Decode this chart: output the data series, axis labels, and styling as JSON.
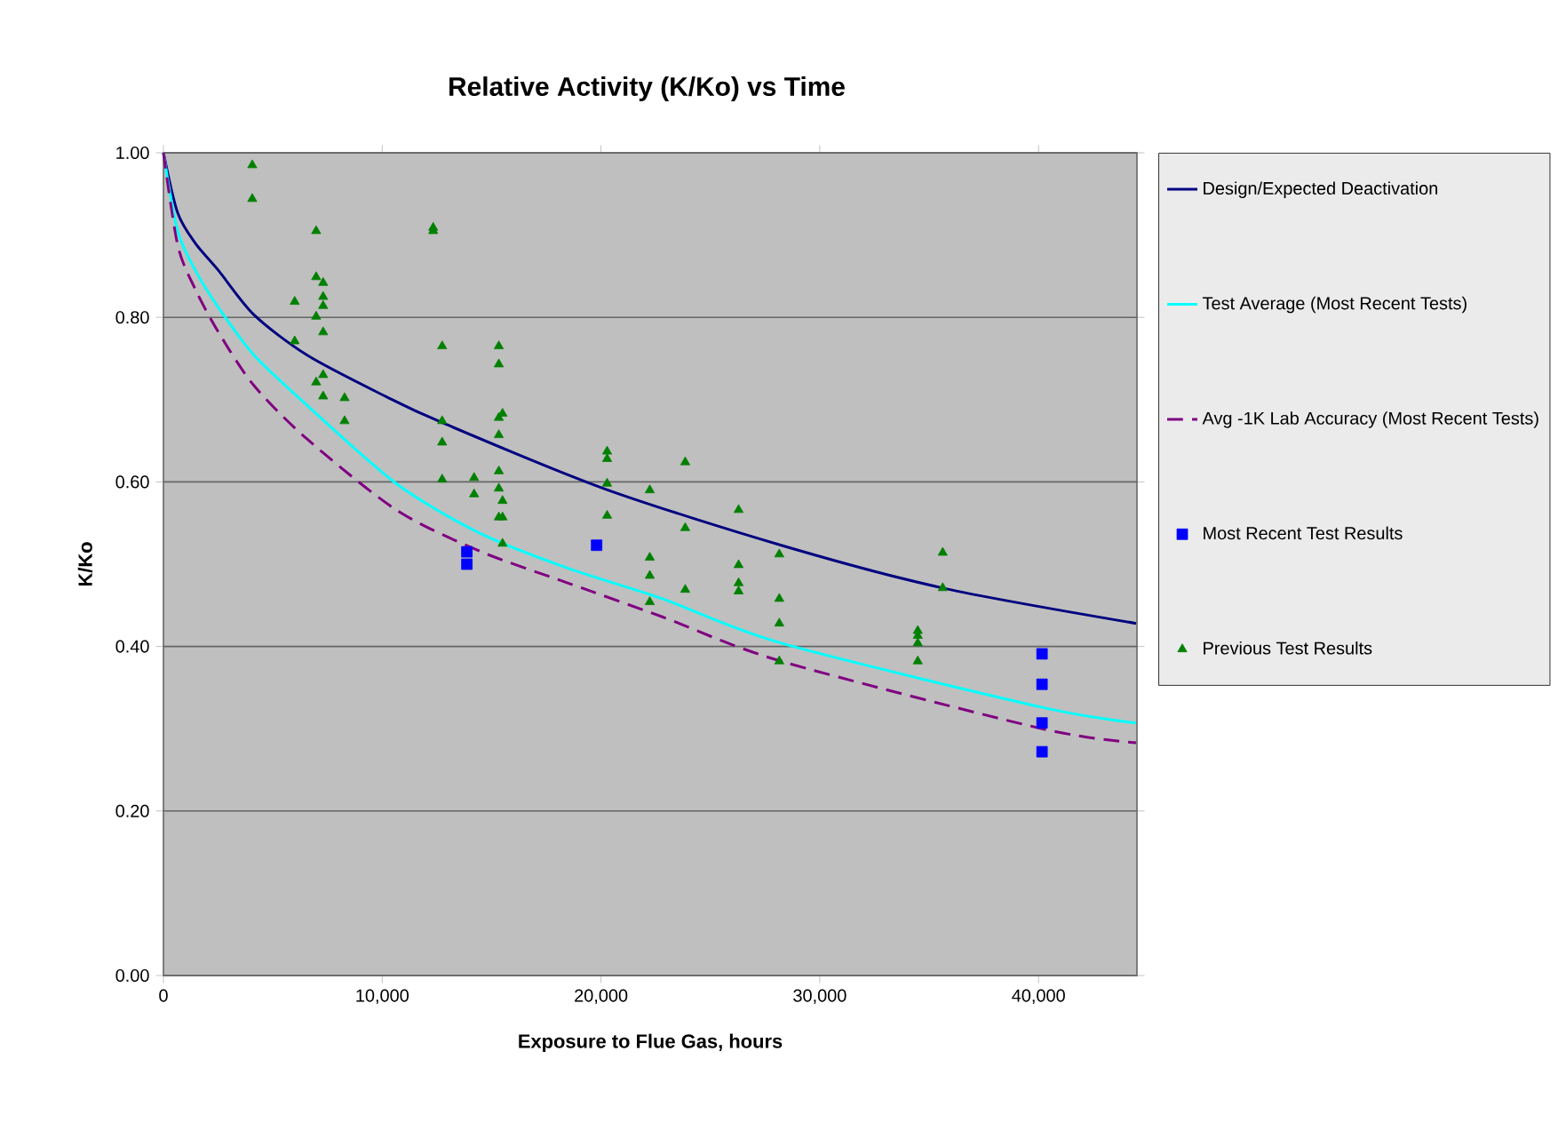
{
  "chart_data": {
    "type": "scatter",
    "title": "Relative Activity (K/Ko) vs Time",
    "xlabel": "Exposure to Flue Gas, hours",
    "ylabel": "K/Ko",
    "xlim": [
      0,
      44500
    ],
    "ylim": [
      0,
      1
    ],
    "xticks": [
      0,
      {
        "value": 10000,
        "label": "10,000"
      },
      {
        "value": 20000,
        "label": "20,000"
      },
      {
        "value": 30000,
        "label": "30,000"
      },
      {
        "value": 40000,
        "label": "40,000"
      }
    ],
    "yticks": [
      {
        "value": 0,
        "label": "0.00"
      },
      {
        "value": 0.2,
        "label": "0.20"
      },
      {
        "value": 0.4,
        "label": "0.40"
      },
      {
        "value": 0.6,
        "label": "0.60"
      },
      {
        "value": 0.8,
        "label": "0.80"
      },
      {
        "value": 1,
        "label": "1.00"
      }
    ],
    "grid": "y",
    "legend": "right",
    "series": [
      {
        "name": "Design/Expected Deactivation",
        "type": "line",
        "line_style": "solid",
        "marker": "none",
        "color": "#000080",
        "x": [
          0,
          650,
          1460,
          2515,
          4140,
          6570,
          10000,
          12740,
          20120,
          28240,
          35620,
          44460
        ],
        "values": [
          1.0,
          0.927,
          0.89,
          0.857,
          0.803,
          0.754,
          0.706,
          0.672,
          0.592,
          0.523,
          0.471,
          0.428
        ]
      },
      {
        "name": "Test Average (Most Recent Tests)",
        "type": "line",
        "line_style": "solid",
        "marker": "none",
        "color": "#00ffff",
        "x": [
          0,
          650,
          1460,
          2515,
          4140,
          6570,
          10640,
          14440,
          18500,
          22800,
          28240,
          40160,
          44460
        ],
        "values": [
          1.0,
          0.905,
          0.857,
          0.812,
          0.754,
          0.693,
          0.598,
          0.538,
          0.495,
          0.458,
          0.404,
          0.326,
          0.307
        ]
      },
      {
        "name": "Avg -1K Lab Accuracy (Most Recent Tests)",
        "type": "line",
        "line_style": "dashed",
        "marker": "none",
        "color": "#800080",
        "x": [
          0,
          650,
          1460,
          2515,
          4140,
          6570,
          10640,
          14440,
          18500,
          22800,
          28240,
          40160,
          44460
        ],
        "values": [
          1.0,
          0.888,
          0.834,
          0.782,
          0.717,
          0.652,
          0.566,
          0.516,
          0.477,
          0.436,
          0.382,
          0.3,
          0.283
        ]
      },
      {
        "name": "Most Recent Test Results",
        "marker": "square",
        "color": "#0000ff",
        "x": [
          13870,
          13870,
          19800,
          40160,
          40160,
          40160,
          40160
        ],
        "values": [
          0.515,
          0.5,
          0.523,
          0.391,
          0.354,
          0.307,
          0.272
        ]
      },
      {
        "name": "Previous Test Results",
        "marker": "triangle",
        "color": "#008000",
        "x": [
          4060,
          4060,
          6980,
          12330,
          12330,
          6980,
          7300,
          7300,
          7300,
          6000,
          6980,
          7300,
          6000,
          6980,
          7300,
          7300,
          8280,
          8280,
          12740,
          15330,
          15330,
          12740,
          12740,
          15330,
          15500,
          15330,
          12740,
          14200,
          14200,
          15330,
          15330,
          15500,
          15330,
          15500,
          15500,
          20280,
          20280,
          20280,
          20280,
          22230,
          23850,
          23850,
          22230,
          22230,
          22230,
          23850,
          26290,
          26290,
          26290,
          26290,
          28150,
          28150,
          28150,
          28150,
          35620,
          35620,
          34480,
          34480,
          34480,
          34480
        ],
        "values": [
          0.985,
          0.944,
          0.905,
          0.909,
          0.905,
          0.849,
          0.842,
          0.825,
          0.814,
          0.819,
          0.801,
          0.782,
          0.771,
          0.721,
          0.73,
          0.704,
          0.702,
          0.674,
          0.765,
          0.765,
          0.743,
          0.674,
          0.648,
          0.678,
          0.683,
          0.657,
          0.603,
          0.605,
          0.585,
          0.613,
          0.592,
          0.577,
          0.557,
          0.557,
          0.525,
          0.637,
          0.628,
          0.598,
          0.559,
          0.59,
          0.624,
          0.544,
          0.508,
          0.486,
          0.454,
          0.469,
          0.566,
          0.499,
          0.477,
          0.467,
          0.512,
          0.458,
          0.428,
          0.382,
          0.514,
          0.471,
          0.419,
          0.413,
          0.404,
          0.382
        ]
      }
    ]
  }
}
